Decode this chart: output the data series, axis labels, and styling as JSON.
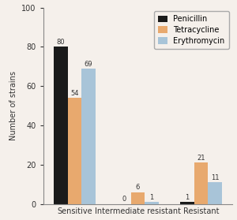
{
  "categories": [
    "Sensitive",
    "Intermediate resistant",
    "Resistant"
  ],
  "penicillin": [
    80,
    0,
    1
  ],
  "tetracycline": [
    54,
    6,
    21
  ],
  "erythromycin": [
    69,
    1,
    11
  ],
  "bar_colors": {
    "penicillin": "#1a1a1a",
    "tetracycline": "#e8a96e",
    "erythromycin": "#a8c4d8"
  },
  "legend_labels": [
    "Penicillin",
    "Tetracycline",
    "Erythromycin"
  ],
  "ylabel": "Number of strains",
  "ylim": [
    0,
    100
  ],
  "yticks": [
    0,
    20,
    40,
    60,
    80,
    100
  ],
  "bar_width": 0.22,
  "label_fontsize": 7,
  "tick_fontsize": 7,
  "legend_fontsize": 7,
  "value_fontsize": 6,
  "background_color": "#f5f0eb"
}
